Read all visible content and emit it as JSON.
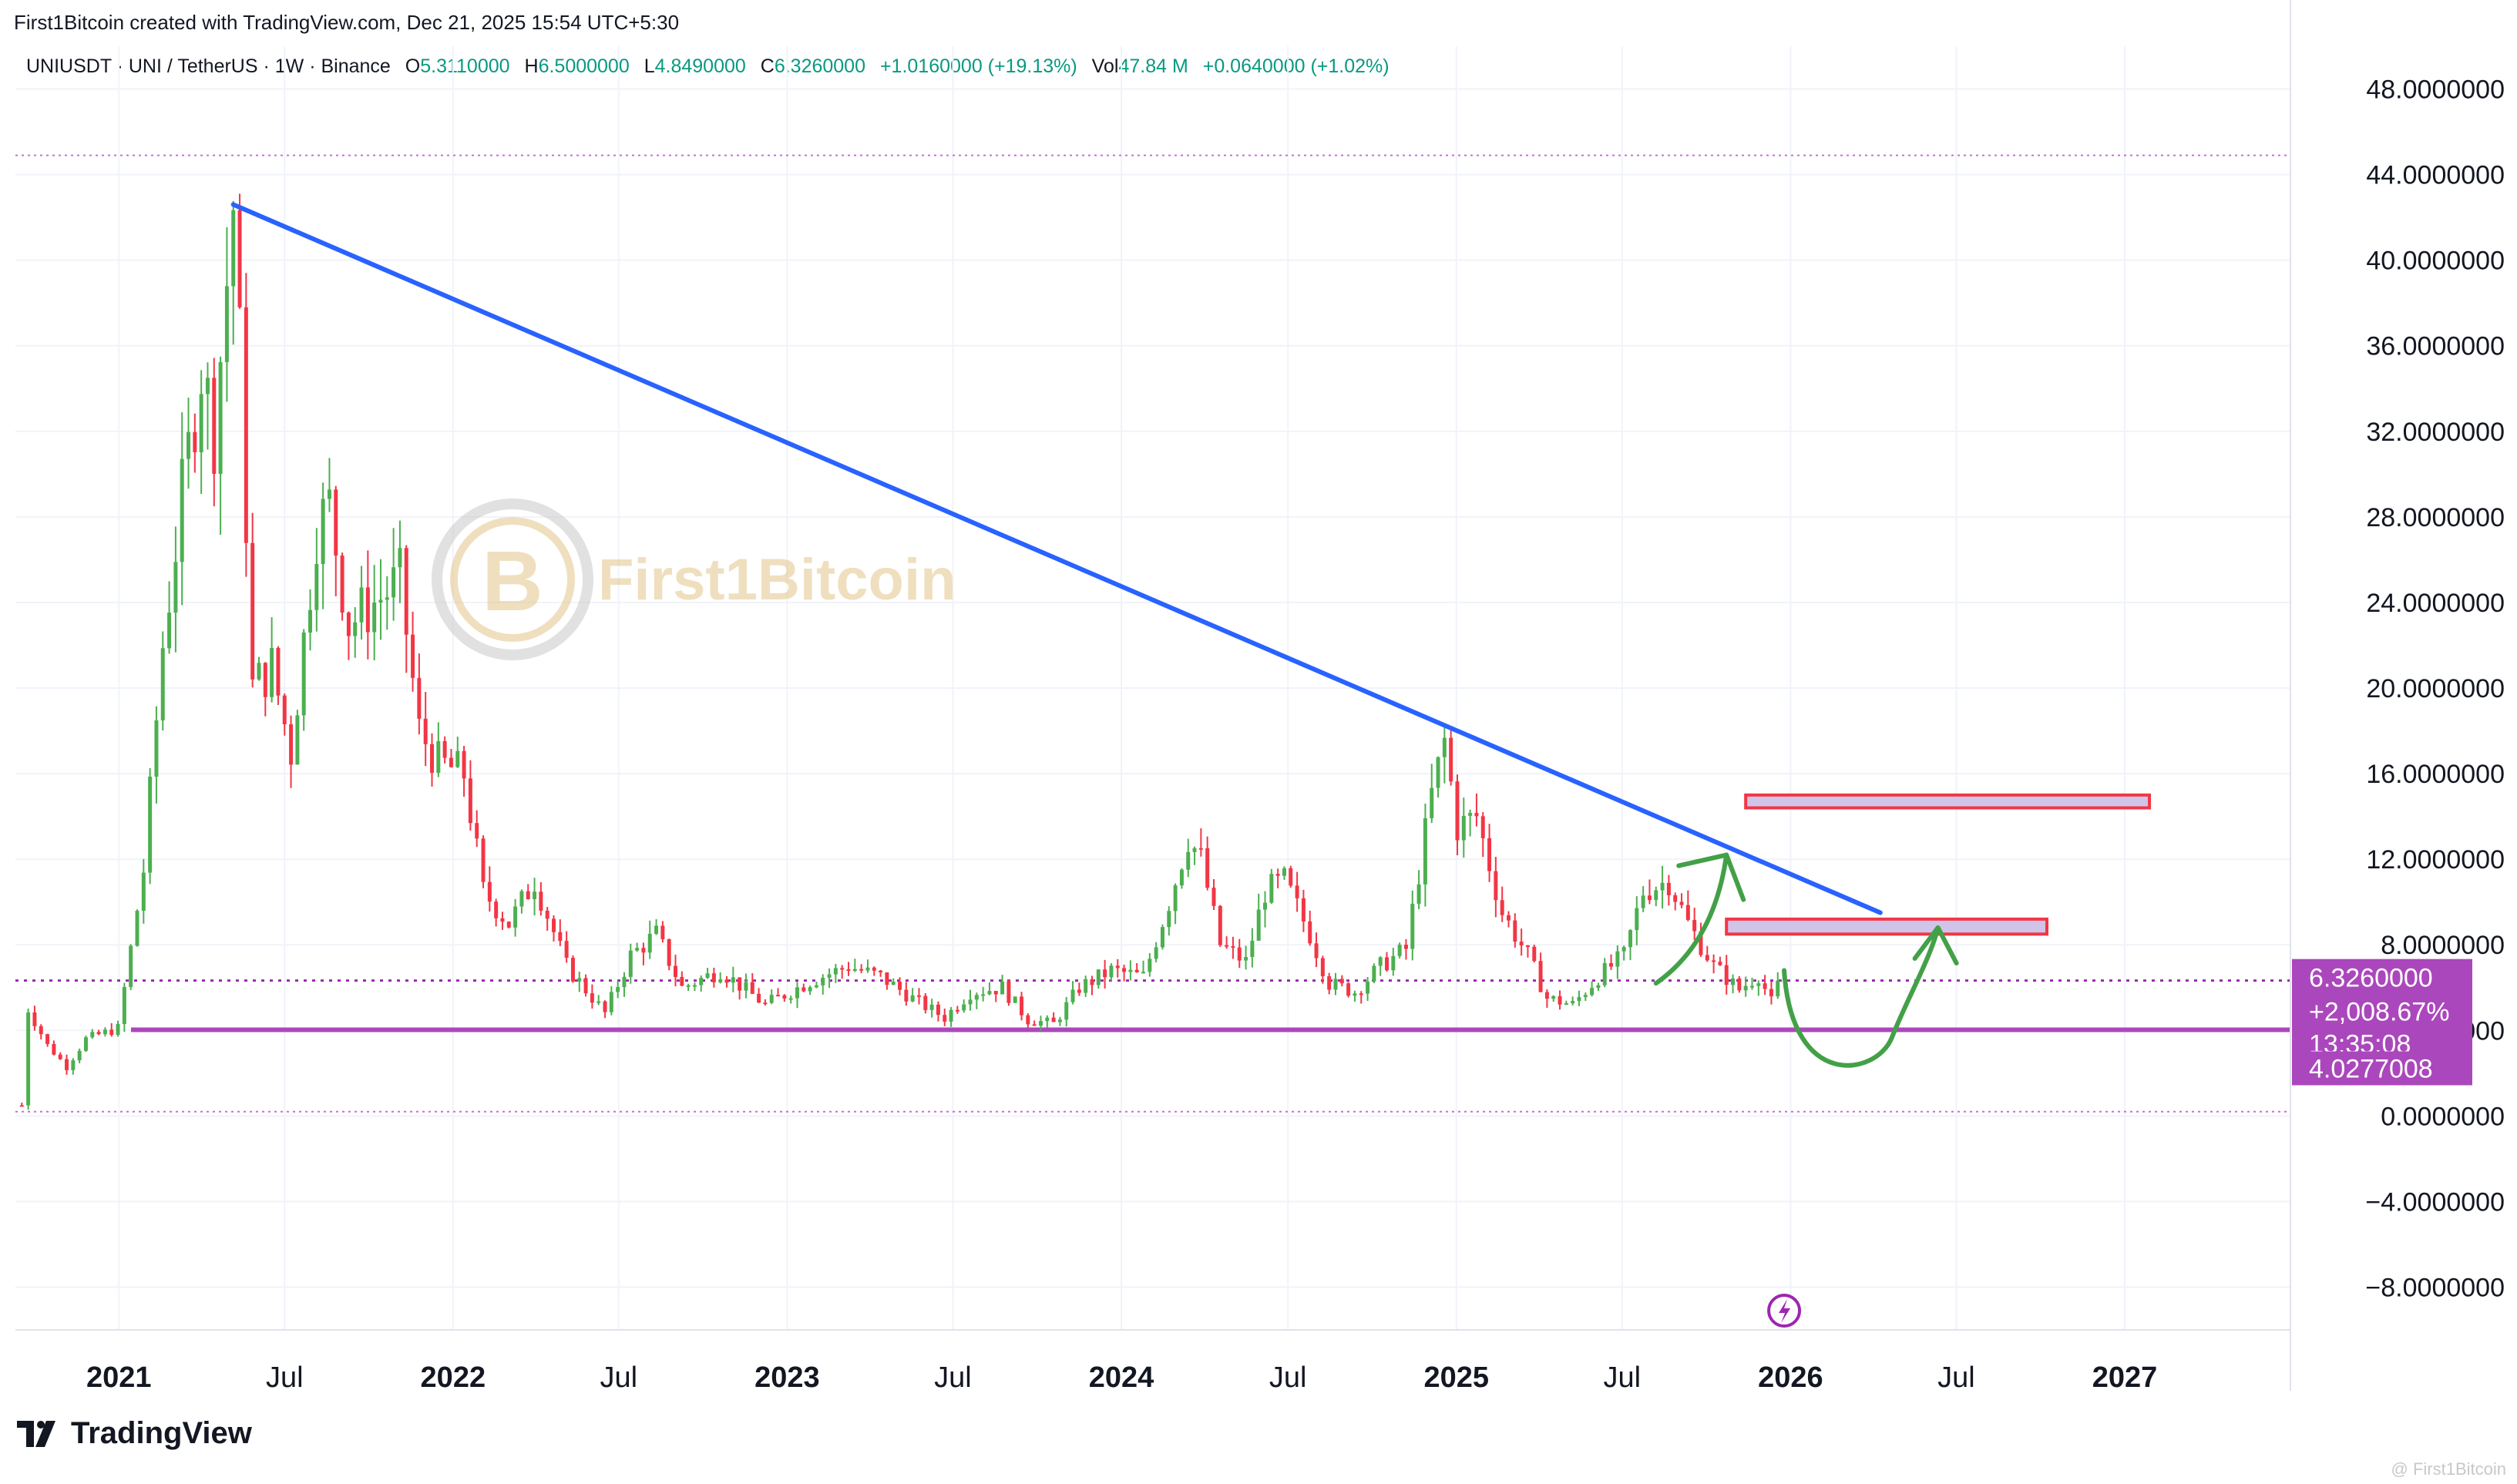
{
  "header": {
    "text": "First1Bitcoin created with TradingView.com, Dec 21, 2025 15:54 UTC+5:30"
  },
  "legend": {
    "symbol": "UNIUSDT · UNI / TetherUS · 1W · Binance",
    "o_label": "O",
    "o_value": "5.3110000",
    "h_label": "H",
    "h_value": "6.5000000",
    "l_label": "L",
    "l_value": "4.8490000",
    "c_label": "C",
    "c_value": "6.3260000",
    "change": "+1.0160000 (+19.13%)",
    "vol_label": "Vol",
    "vol_value": "47.84 M",
    "vol_change": "+0.0640000 (+1.02%)"
  },
  "watermark_logo": {
    "text": "First1Bitcoin"
  },
  "price_badge": {
    "price": "6.3260000",
    "change": "+2,008.67%",
    "countdown": "13:35:08",
    "support": "4.0277008"
  },
  "footer": {
    "brand": "TradingView",
    "credit": "@ First1Bitcoin"
  },
  "colors": {
    "up": "#4caf50",
    "down": "#f23645",
    "trendline": "#2962ff",
    "support_line": "#ab47bc",
    "badge": "#ab47bc",
    "zone_fill": "#d1c4e9",
    "zone_border": "#f23645",
    "arrow": "#43a047",
    "grid": "#f0f3fa"
  },
  "chart_data": {
    "type": "candlestick",
    "title": "UNIUSDT · UNI / TetherUS · 1W · Binance",
    "xlabel": "",
    "ylabel": "",
    "ylim": [
      -10,
      50
    ],
    "xlim": [
      "2020-09-10",
      "2027-07-01"
    ],
    "y_ticks": [
      "48.0000000",
      "44.0000000",
      "40.0000000",
      "36.0000000",
      "32.0000000",
      "28.0000000",
      "24.0000000",
      "20.0000000",
      "16.0000000",
      "12.0000000",
      "8.0000000",
      "4.0000000",
      "0.0000000",
      "−4.0000000",
      "−8.0000000"
    ],
    "y_tick_values": [
      48,
      44,
      40,
      36,
      32,
      28,
      24,
      20,
      16,
      12,
      8,
      4,
      0,
      -4,
      -8
    ],
    "x_ticks": [
      {
        "label": "2021",
        "date": "2021-01-01",
        "bold": true
      },
      {
        "label": "Jul",
        "date": "2021-07-01",
        "bold": false
      },
      {
        "label": "2022",
        "date": "2022-01-01",
        "bold": true
      },
      {
        "label": "Jul",
        "date": "2022-07-01",
        "bold": false
      },
      {
        "label": "2023",
        "date": "2023-01-01",
        "bold": true
      },
      {
        "label": "Jul",
        "date": "2023-07-01",
        "bold": false
      },
      {
        "label": "2024",
        "date": "2024-01-01",
        "bold": true
      },
      {
        "label": "Jul",
        "date": "2024-07-01",
        "bold": false
      },
      {
        "label": "2025",
        "date": "2025-01-01",
        "bold": true
      },
      {
        "label": "Jul",
        "date": "2025-07-01",
        "bold": false
      },
      {
        "label": "2026",
        "date": "2026-01-01",
        "bold": true
      },
      {
        "label": "Jul",
        "date": "2026-07-01",
        "bold": false
      },
      {
        "label": "2027",
        "date": "2027-01-01",
        "bold": true
      }
    ],
    "grid": true,
    "price_anchors": [
      [
        "2020-09-17",
        0.5
      ],
      [
        "2020-09-24",
        5.0
      ],
      [
        "2020-10-15",
        3.3
      ],
      [
        "2020-11-05",
        2.3
      ],
      [
        "2020-11-26",
        3.6
      ],
      [
        "2020-12-31",
        4.1
      ],
      [
        "2021-01-28",
        11.5
      ],
      [
        "2021-02-18",
        22.0
      ],
      [
        "2021-03-11",
        29.0
      ],
      [
        "2021-04-01",
        35.0
      ],
      [
        "2021-04-15",
        32.0
      ],
      [
        "2021-05-06",
        42.5
      ],
      [
        "2021-05-13",
        36.0
      ],
      [
        "2021-05-27",
        20.0
      ],
      [
        "2021-06-17",
        21.0
      ],
      [
        "2021-07-08",
        17.0
      ],
      [
        "2021-08-05",
        27.5
      ],
      [
        "2021-08-19",
        28.5
      ],
      [
        "2021-09-09",
        23.0
      ],
      [
        "2021-10-07",
        24.0
      ],
      [
        "2021-11-04",
        25.0
      ],
      [
        "2021-11-25",
        18.0
      ],
      [
        "2021-12-16",
        16.5
      ],
      [
        "2022-01-13",
        16.0
      ],
      [
        "2022-02-03",
        10.5
      ],
      [
        "2022-03-03",
        9.0
      ],
      [
        "2022-03-31",
        11.0
      ],
      [
        "2022-05-05",
        7.0
      ],
      [
        "2022-06-16",
        4.8
      ],
      [
        "2022-07-14",
        7.5
      ],
      [
        "2022-08-11",
        8.5
      ],
      [
        "2022-09-08",
        6.0
      ],
      [
        "2022-10-20",
        6.8
      ],
      [
        "2022-12-08",
        5.2
      ],
      [
        "2023-01-26",
        6.3
      ],
      [
        "2023-03-09",
        7.0
      ],
      [
        "2023-04-13",
        6.5
      ],
      [
        "2023-05-25",
        5.3
      ],
      [
        "2023-06-22",
        4.6
      ],
      [
        "2023-07-20",
        5.8
      ],
      [
        "2023-08-24",
        6.0
      ],
      [
        "2023-09-21",
        4.5
      ],
      [
        "2023-10-19",
        4.3
      ],
      [
        "2023-11-16",
        6.0
      ],
      [
        "2023-12-21",
        6.8
      ],
      [
        "2024-01-25",
        6.5
      ],
      [
        "2024-02-22",
        10.0
      ],
      [
        "2024-03-14",
        13.0
      ],
      [
        "2024-03-28",
        12.0
      ],
      [
        "2024-04-18",
        8.0
      ],
      [
        "2024-05-16",
        7.2
      ],
      [
        "2024-06-06",
        10.5
      ],
      [
        "2024-06-27",
        11.0
      ],
      [
        "2024-07-25",
        8.5
      ],
      [
        "2024-08-15",
        6.2
      ],
      [
        "2024-09-12",
        5.8
      ],
      [
        "2024-10-10",
        7.0
      ],
      [
        "2024-11-07",
        7.8
      ],
      [
        "2024-12-05",
        15.0
      ],
      [
        "2024-12-19",
        17.5
      ],
      [
        "2025-01-02",
        13.5
      ],
      [
        "2025-01-23",
        14.0
      ],
      [
        "2025-02-20",
        9.5
      ],
      [
        "2025-03-20",
        7.5
      ],
      [
        "2025-04-10",
        5.5
      ],
      [
        "2025-05-08",
        5.2
      ],
      [
        "2025-06-05",
        6.5
      ],
      [
        "2025-07-03",
        7.5
      ],
      [
        "2025-07-24",
        10.5
      ],
      [
        "2025-08-21",
        11.0
      ],
      [
        "2025-09-11",
        9.0
      ],
      [
        "2025-10-09",
        7.0
      ],
      [
        "2025-11-06",
        5.9
      ],
      [
        "2025-11-27",
        6.6
      ],
      [
        "2025-12-11",
        5.3
      ],
      [
        "2025-12-18",
        6.3
      ]
    ],
    "last_close": 6.326,
    "support_level": 4.0277008,
    "all_time_high": 44.9,
    "chart_bottom": 0.2,
    "trendline": {
      "from": [
        "2021-05-06",
        42.6
      ],
      "to": [
        "2026-04-09",
        9.5
      ]
    },
    "resistance_zones": [
      {
        "from": "2025-10-23",
        "to": "2026-10-08",
        "low": 8.5,
        "high": 9.2
      },
      {
        "from": "2025-11-13",
        "to": "2027-01-28",
        "low": 14.4,
        "high": 15.0
      }
    ],
    "projection_arrows": [
      {
        "from": [
          "2025-08-07",
          6.2
        ],
        "to": [
          "2025-10-23",
          12.2
        ]
      },
      {
        "from": [
          "2025-12-25",
          6.8
        ],
        "to": [
          "2026-06-11",
          8.8
        ]
      }
    ]
  }
}
